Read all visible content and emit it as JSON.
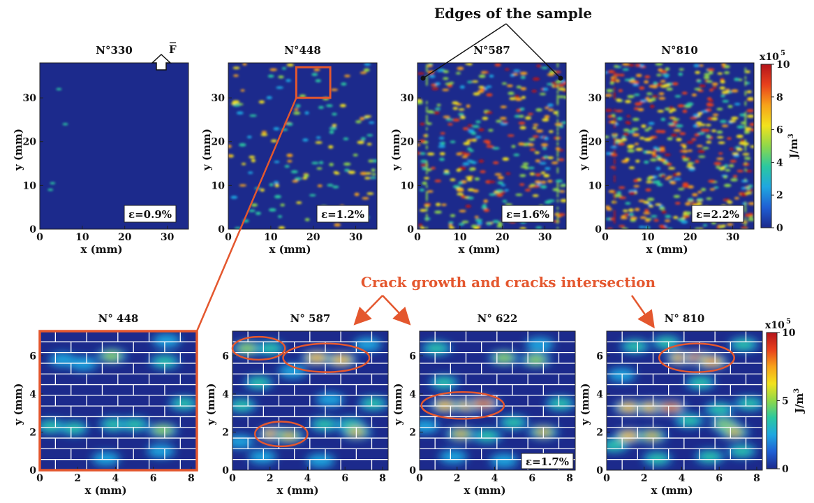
{
  "annotations": {
    "edges_label": "Edges of the sample",
    "crack_label": "Crack growth and cracks intersection",
    "force_label": "F"
  },
  "colorbar": {
    "unit": "J/m",
    "unit_exp": "3",
    "multiplier_base": "x10",
    "multiplier_exp": "5",
    "colors": [
      "#1c2a8c",
      "#1f5fd4",
      "#1fa7e0",
      "#2bc8a0",
      "#8fd84a",
      "#f2e21d",
      "#f7a21a",
      "#e8401c",
      "#b4141a"
    ],
    "top_ticks": [
      "0",
      "2",
      "4",
      "6",
      "8",
      "10"
    ],
    "bottom_ticks": [
      "0",
      "5",
      "10"
    ]
  },
  "colors": {
    "background_field": "#1c2a8c",
    "zoom_box": "#e4572e",
    "crack_ellipse": "#e4572e",
    "grid_lines": "#ffffff"
  },
  "chart_data": [
    {
      "type": "heatmap",
      "title": "N°330",
      "xlabel": "x (mm)",
      "ylabel": "y (mm)",
      "xlim": [
        0,
        35
      ],
      "ylim": [
        0,
        38
      ],
      "xticks": [
        "0",
        "10",
        "20",
        "30"
      ],
      "yticks": [
        "0",
        "10",
        "20",
        "30"
      ],
      "strain_label": "ε=0.9%",
      "value_range": [
        0,
        10
      ],
      "value_unit": "x10^5 J/m^3",
      "density": "very sparse"
    },
    {
      "type": "heatmap",
      "title": "N°448",
      "xlabel": "x (mm)",
      "ylabel": "y (mm)",
      "xlim": [
        0,
        35
      ],
      "ylim": [
        0,
        38
      ],
      "xticks": [
        "0",
        "10",
        "20",
        "30"
      ],
      "yticks": [
        "0",
        "10",
        "20",
        "30"
      ],
      "strain_label": "ε=1.2%",
      "value_range": [
        0,
        10
      ],
      "value_unit": "x10^5 J/m^3",
      "zoom_region": {
        "x": [
          16,
          24
        ],
        "y": [
          30,
          37
        ]
      },
      "density": "moderate"
    },
    {
      "type": "heatmap",
      "title": "N°587",
      "xlabel": "x (mm)",
      "ylabel": "y (mm)",
      "xlim": [
        0,
        35
      ],
      "ylim": [
        0,
        38
      ],
      "xticks": [
        "0",
        "10",
        "20",
        "30"
      ],
      "yticks": [
        "0",
        "10",
        "20",
        "30"
      ],
      "strain_label": "ε=1.6%",
      "value_range": [
        0,
        10
      ],
      "value_unit": "x10^5 J/m^3",
      "density": "dense"
    },
    {
      "type": "heatmap",
      "title": "N°810",
      "xlabel": "x (mm)",
      "ylabel": "y (mm)",
      "xlim": [
        0,
        35
      ],
      "ylim": [
        0,
        38
      ],
      "xticks": [
        "0",
        "10",
        "20",
        "30"
      ],
      "yticks": [
        "0",
        "10",
        "20",
        "30"
      ],
      "strain_label": "ε=2.2%",
      "value_range": [
        0,
        10
      ],
      "value_unit": "x10^5 J/m^3",
      "density": "very dense"
    },
    {
      "type": "heatmap",
      "title": "N° 448",
      "xlabel": "x (mm)",
      "ylabel": "y (mm)",
      "xlim": [
        0,
        8.3
      ],
      "ylim": [
        0,
        7.3
      ],
      "xticks": [
        "0",
        "2",
        "4",
        "6",
        "8"
      ],
      "yticks": [
        "0",
        "2",
        "4",
        "6"
      ],
      "value_range": [
        0,
        10
      ],
      "value_unit": "x10^5 J/m^3",
      "hotspots": [
        [
          0.6,
          2.3,
          0.5
        ],
        [
          1.8,
          2.2,
          0.45
        ],
        [
          3.8,
          6.0,
          0.6
        ],
        [
          6.6,
          5.7,
          0.5
        ],
        [
          2.3,
          5.6,
          0.4
        ],
        [
          3.9,
          2.4,
          0.5
        ],
        [
          5.0,
          2.4,
          0.5
        ],
        [
          6.5,
          2.1,
          0.65
        ],
        [
          7.6,
          3.5,
          0.5
        ],
        [
          6.4,
          1.0,
          0.4
        ],
        [
          3.5,
          0.6,
          0.4
        ],
        [
          6.7,
          6.8,
          0.35
        ],
        [
          1.2,
          5.8,
          0.3
        ]
      ]
    },
    {
      "type": "heatmap",
      "title": "N° 587",
      "xlabel": "x (mm)",
      "ylabel": "y (mm)",
      "xlim": [
        0,
        8.3
      ],
      "ylim": [
        0,
        7.3
      ],
      "xticks": [
        "0",
        "2",
        "4",
        "6",
        "8"
      ],
      "yticks": [
        "0",
        "2",
        "4",
        "6"
      ],
      "value_range": [
        0,
        10
      ],
      "value_unit": "x10^5 J/m^3",
      "hotspots": [
        [
          0.8,
          6.4,
          0.6
        ],
        [
          2.0,
          6.4,
          0.55
        ],
        [
          4.5,
          5.9,
          0.75
        ],
        [
          5.8,
          5.8,
          0.8
        ],
        [
          2.2,
          1.9,
          0.85
        ],
        [
          3.0,
          1.8,
          0.7
        ],
        [
          3.2,
          5.2,
          0.4
        ],
        [
          0.5,
          3.4,
          0.45
        ],
        [
          4.9,
          2.4,
          0.5
        ],
        [
          6.3,
          2.4,
          0.5
        ],
        [
          6.6,
          2.0,
          0.7
        ],
        [
          7.5,
          3.5,
          0.5
        ],
        [
          1.6,
          0.7,
          0.4
        ],
        [
          4.7,
          0.5,
          0.4
        ],
        [
          1.4,
          4.6,
          0.45
        ],
        [
          5.2,
          3.7,
          0.4
        ],
        [
          0.4,
          1.5,
          0.4
        ],
        [
          7.2,
          6.6,
          0.35
        ]
      ]
    },
    {
      "type": "heatmap",
      "title": "N° 622",
      "xlabel": "x (mm)",
      "ylabel": "y (mm)",
      "xlim": [
        0,
        8.3
      ],
      "ylim": [
        0,
        7.3
      ],
      "xticks": [
        "0",
        "2",
        "4",
        "6",
        "8"
      ],
      "yticks": [
        "0",
        "2",
        "4",
        "6"
      ],
      "strain_label": "ε=1.7%",
      "value_range": [
        0,
        10
      ],
      "value_unit": "x10^5 J/m^3",
      "hotspots": [
        [
          1.4,
          3.4,
          0.8
        ],
        [
          2.6,
          3.4,
          0.85
        ],
        [
          3.4,
          3.5,
          0.95
        ],
        [
          0.9,
          6.4,
          0.55
        ],
        [
          4.5,
          5.9,
          0.6
        ],
        [
          6.2,
          5.8,
          0.6
        ],
        [
          2.2,
          1.9,
          0.7
        ],
        [
          3.6,
          1.8,
          0.55
        ],
        [
          6.6,
          2.0,
          0.7
        ],
        [
          7.5,
          3.5,
          0.5
        ],
        [
          5.0,
          2.5,
          0.45
        ],
        [
          1.8,
          0.7,
          0.4
        ],
        [
          4.5,
          0.5,
          0.4
        ],
        [
          6.4,
          6.6,
          0.4
        ],
        [
          1.3,
          4.6,
          0.45
        ],
        [
          0.3,
          2.3,
          0.4
        ]
      ]
    },
    {
      "type": "heatmap",
      "title": "N° 810",
      "xlabel": "x (mm)",
      "ylabel": "y (mm)",
      "xlim": [
        0,
        8.3
      ],
      "ylim": [
        0,
        7.3
      ],
      "xticks": [
        "0",
        "2",
        "4",
        "6",
        "8"
      ],
      "yticks": [
        "0",
        "2",
        "4",
        "6"
      ],
      "value_range": [
        0,
        10
      ],
      "value_unit": "x10^5 J/m^3",
      "hotspots": [
        [
          4.0,
          5.9,
          0.9
        ],
        [
          4.9,
          5.9,
          0.95
        ],
        [
          5.6,
          5.7,
          0.85
        ],
        [
          1.2,
          3.3,
          0.8
        ],
        [
          2.4,
          3.3,
          0.8
        ],
        [
          3.4,
          3.3,
          0.95
        ],
        [
          1.2,
          1.8,
          0.75
        ],
        [
          2.4,
          1.8,
          0.7
        ],
        [
          0.4,
          1.3,
          0.5
        ],
        [
          6.3,
          2.4,
          0.6
        ],
        [
          6.8,
          2.0,
          0.7
        ],
        [
          7.6,
          3.5,
          0.55
        ],
        [
          5.5,
          0.7,
          0.5
        ],
        [
          7.2,
          1.0,
          0.45
        ],
        [
          1.5,
          6.5,
          0.45
        ],
        [
          3.2,
          6.7,
          0.45
        ],
        [
          7.3,
          6.6,
          0.5
        ],
        [
          5.0,
          4.6,
          0.5
        ],
        [
          0.8,
          5.0,
          0.4
        ],
        [
          4.4,
          2.6,
          0.5
        ],
        [
          2.7,
          0.6,
          0.45
        ],
        [
          6.0,
          3.2,
          0.5
        ]
      ]
    }
  ]
}
